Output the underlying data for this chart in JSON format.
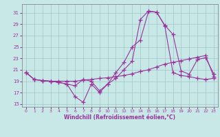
{
  "xlabel": "Windchill (Refroidissement éolien,°C)",
  "background_color": "#c8e8e8",
  "line_color": "#993399",
  "xlim": [
    -0.5,
    23.5
  ],
  "ylim": [
    14.5,
    32.5
  ],
  "yticks": [
    15,
    17,
    19,
    21,
    23,
    25,
    27,
    29,
    31
  ],
  "xticks": [
    0,
    1,
    2,
    3,
    4,
    5,
    6,
    7,
    8,
    9,
    10,
    11,
    12,
    13,
    14,
    15,
    16,
    17,
    18,
    19,
    20,
    21,
    22,
    23
  ],
  "line1_x": [
    0,
    1,
    2,
    3,
    4,
    5,
    6,
    7,
    8,
    9,
    10,
    11,
    12,
    13,
    14,
    15,
    16,
    17,
    18,
    19,
    20,
    21,
    22,
    23
  ],
  "line1_y": [
    20.5,
    19.3,
    19.1,
    19.0,
    18.8,
    18.5,
    16.3,
    15.3,
    18.5,
    17.0,
    18.5,
    19.5,
    21.0,
    22.5,
    29.8,
    31.3,
    31.1,
    28.7,
    20.5,
    20.0,
    19.8,
    19.5,
    19.3,
    19.5
  ],
  "line2_x": [
    0,
    1,
    2,
    3,
    4,
    5,
    6,
    7,
    8,
    9,
    10,
    11,
    12,
    13,
    14,
    15,
    16,
    17,
    18,
    19,
    20,
    21,
    22,
    23
  ],
  "line2_y": [
    20.5,
    19.3,
    19.1,
    19.0,
    19.0,
    19.0,
    19.0,
    19.2,
    19.3,
    19.5,
    19.6,
    19.8,
    20.0,
    20.3,
    20.7,
    21.0,
    21.5,
    22.0,
    22.3,
    22.6,
    22.9,
    23.2,
    23.5,
    19.8
  ],
  "line3_x": [
    0,
    1,
    2,
    3,
    4,
    5,
    6,
    7,
    8,
    9,
    10,
    11,
    12,
    13,
    14,
    15,
    16,
    17,
    18,
    19,
    20,
    21,
    22,
    23
  ],
  "line3_y": [
    20.5,
    19.3,
    19.1,
    19.0,
    18.8,
    18.5,
    18.2,
    19.3,
    19.0,
    17.3,
    18.5,
    20.5,
    22.3,
    25.0,
    26.2,
    31.2,
    31.1,
    28.8,
    27.2,
    20.8,
    20.2,
    22.8,
    23.1,
    20.3
  ]
}
